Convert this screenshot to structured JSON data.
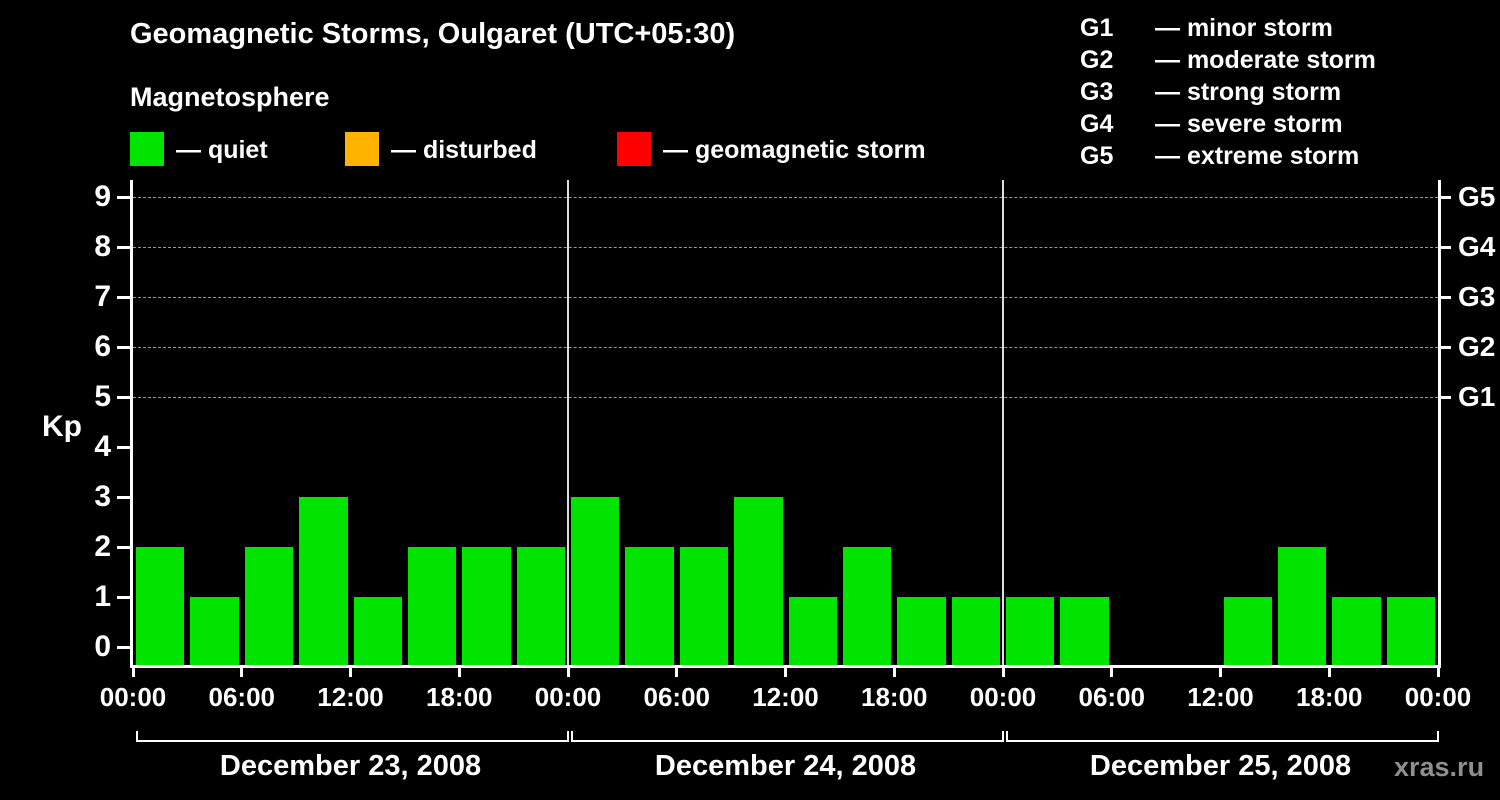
{
  "header": {
    "title": "Geomagnetic Storms, Oulgaret (UTC+05:30)",
    "subtitle": "Magnetosphere"
  },
  "legend": {
    "items": [
      {
        "name": "quiet",
        "label": "— quiet",
        "color": "#00e400"
      },
      {
        "name": "disturbed",
        "label": "— disturbed",
        "color": "#ffb300"
      },
      {
        "name": "geomagnetic-storm",
        "label": "— geomagnetic storm",
        "color": "#ff0000"
      }
    ]
  },
  "storm_scale_legend": {
    "items": [
      {
        "level": "G1",
        "label": "— minor storm"
      },
      {
        "level": "G2",
        "label": "— moderate storm"
      },
      {
        "level": "G3",
        "label": "— strong storm"
      },
      {
        "level": "G4",
        "label": "— severe storm"
      },
      {
        "level": "G5",
        "label": "— extreme storm"
      }
    ]
  },
  "chart_data": {
    "type": "bar",
    "title": "Geomagnetic Storms, Oulgaret (UTC+05:30)",
    "ylabel": "Kp",
    "ylim": [
      0,
      9.4
    ],
    "y_ticks": [
      0,
      1,
      2,
      3,
      4,
      5,
      6,
      7,
      8,
      9
    ],
    "gridlines_kp": [
      5,
      6,
      7,
      8,
      9
    ],
    "right_axis_labels": [
      {
        "label": "G1",
        "kp": 5
      },
      {
        "label": "G2",
        "kp": 6
      },
      {
        "label": "G3",
        "kp": 7
      },
      {
        "label": "G4",
        "kp": 8
      },
      {
        "label": "G5",
        "kp": 9
      }
    ],
    "hours_per_bar": 3,
    "x_tick_labels": [
      "00:00",
      "06:00",
      "12:00",
      "18:00",
      "00:00",
      "06:00",
      "12:00",
      "18:00",
      "00:00",
      "06:00",
      "12:00",
      "18:00",
      "00:00"
    ],
    "color_rule": {
      "quiet_max_kp": 3,
      "storm_min_kp": 5
    },
    "days": [
      {
        "date": "December 23, 2008",
        "kp_values": [
          2,
          1,
          2,
          3,
          1,
          2,
          2,
          2
        ]
      },
      {
        "date": "December 24, 2008",
        "kp_values": [
          3,
          2,
          2,
          3,
          1,
          2,
          1,
          1
        ]
      },
      {
        "date": "December 25, 2008",
        "kp_values": [
          1,
          1,
          0,
          0,
          1,
          2,
          1,
          1
        ]
      }
    ]
  },
  "footer": {
    "watermark": "xras.ru"
  }
}
